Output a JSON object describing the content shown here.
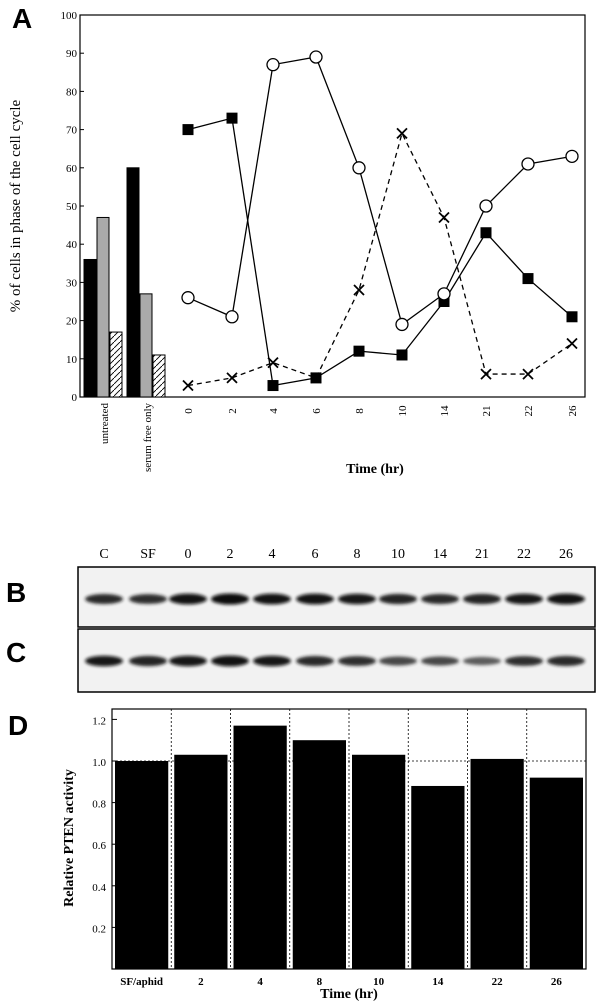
{
  "panels": {
    "A": "A",
    "B": "B",
    "C": "C",
    "D": "D"
  },
  "chart_data": [
    {
      "panel": "A",
      "type": "line",
      "ylabel": "% of cells in phase of the cell cycle",
      "xlabel": "Time (hr)",
      "ylim": [
        0,
        100
      ],
      "yticks": [
        0,
        10,
        20,
        30,
        40,
        50,
        60,
        70,
        80,
        90,
        100
      ],
      "control_bars": {
        "groups": [
          "untreated",
          "serum free only"
        ],
        "series": [
          {
            "values": [
              36,
              60
            ],
            "color": "#000000"
          },
          {
            "values": [
              47,
              27
            ],
            "color": "#aaaaaa"
          },
          {
            "values": [
              17,
              11
            ],
            "color": "#ffffff"
          }
        ]
      },
      "categories": [
        "0",
        "2",
        "4",
        "6",
        "8",
        "10",
        "14",
        "21",
        "22",
        "26"
      ],
      "series": [
        {
          "marker": "square",
          "dashed": false,
          "values": [
            70,
            73,
            3,
            5,
            12,
            11,
            25,
            43,
            31,
            21
          ]
        },
        {
          "marker": "circle",
          "dashed": false,
          "values": [
            26,
            21,
            87,
            89,
            60,
            19,
            27,
            50,
            61,
            63
          ]
        },
        {
          "marker": "x",
          "dashed": true,
          "values": [
            3,
            5,
            9,
            5,
            28,
            69,
            47,
            6,
            6,
            14
          ]
        }
      ]
    },
    {
      "panel": "B_C",
      "type": "blot",
      "lanes": [
        "C",
        "SF",
        "0",
        "2",
        "4",
        "6",
        "8",
        "10",
        "14",
        "21",
        "22",
        "26"
      ],
      "B_intensity": [
        0.8,
        0.75,
        0.95,
        1.0,
        0.95,
        0.95,
        0.9,
        0.85,
        0.8,
        0.85,
        0.9,
        0.95
      ],
      "C_intensity": [
        0.9,
        0.85,
        0.9,
        0.95,
        0.9,
        0.8,
        0.75,
        0.6,
        0.6,
        0.45,
        0.75,
        0.8
      ]
    },
    {
      "panel": "D",
      "type": "bar",
      "ylabel": "Relative PTEN activity",
      "xlabel": "Time (hr)",
      "ylim": [
        0,
        1.25
      ],
      "yticks": [
        0.2,
        0.4,
        0.6,
        0.8,
        1.0,
        1.2
      ],
      "ytick_labels": [
        "0.2",
        "0.4",
        "0.6",
        "0.8",
        "1.0",
        "1.2"
      ],
      "reference_line": 1.0,
      "categories": [
        "SF/aphid",
        "2",
        "4",
        "8",
        "10",
        "14",
        "22",
        "26"
      ],
      "values": [
        1.0,
        1.03,
        1.17,
        1.1,
        1.03,
        0.88,
        1.01,
        0.92
      ]
    }
  ]
}
